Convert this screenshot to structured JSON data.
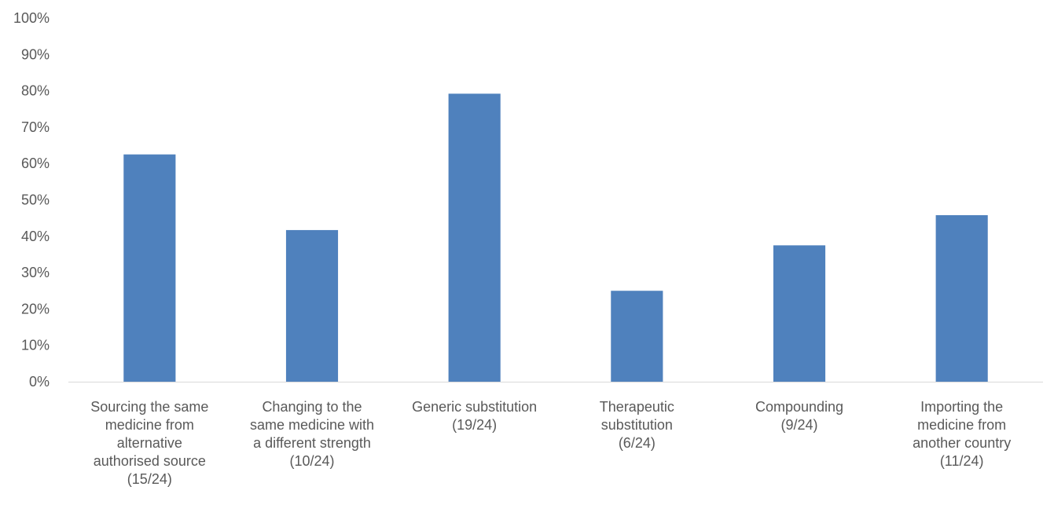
{
  "chart_data": {
    "type": "bar",
    "title": "",
    "xlabel": "",
    "ylabel": "",
    "ylim": [
      0,
      100
    ],
    "ytick_labels": [
      "0%",
      "10%",
      "20%",
      "30%",
      "40%",
      "50%",
      "60%",
      "70%",
      "80%",
      "90%",
      "100%"
    ],
    "grid": false,
    "bar_color": "#4F81BD",
    "categories": [
      [
        "Sourcing the same",
        "medicine from",
        "alternative",
        "authorised source",
        "(15/24)"
      ],
      [
        "Changing to the",
        "same medicine with",
        "a different strength",
        "(10/24)"
      ],
      [
        "Generic substitution",
        "(19/24)"
      ],
      [
        "Therapeutic",
        "substitution",
        "(6/24)"
      ],
      [
        "Compounding",
        "(9/24)"
      ],
      [
        "Importing the",
        "medicine from",
        "another country",
        "(11/24)"
      ]
    ],
    "values": [
      62.5,
      41.7,
      79.2,
      25.0,
      37.5,
      45.8
    ]
  }
}
